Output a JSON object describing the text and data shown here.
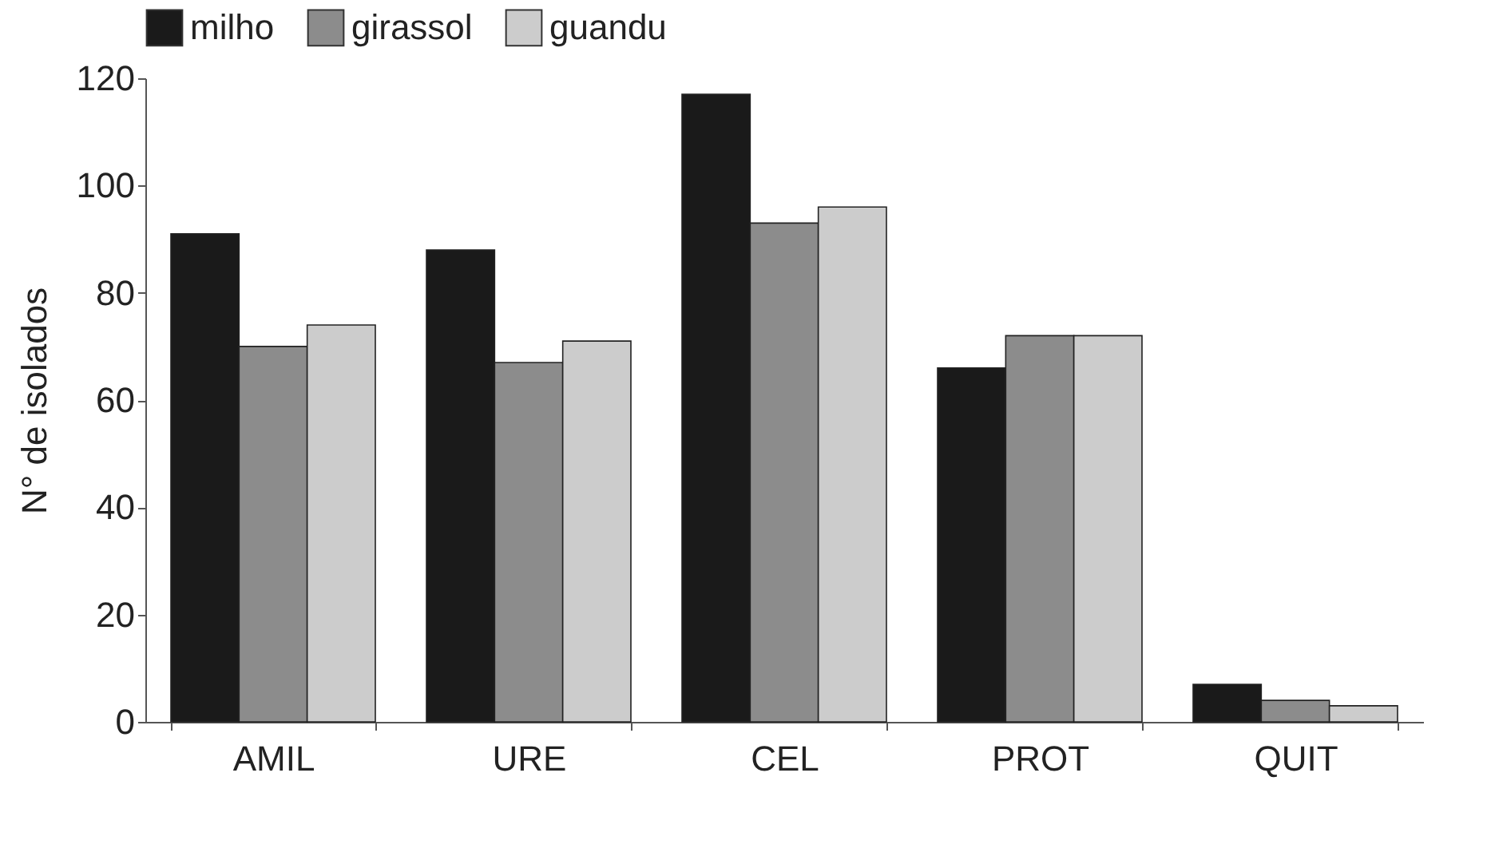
{
  "chart_data": {
    "type": "bar",
    "ylabel": "N° de isolados",
    "categories": [
      "AMIL",
      "URE",
      "CEL",
      "PROT",
      "QUIT"
    ],
    "series": [
      {
        "name": "milho",
        "color": "#1a1a1a",
        "values": [
          91,
          88,
          117,
          66,
          7
        ]
      },
      {
        "name": "girassol",
        "color": "#8c8c8c",
        "values": [
          70,
          67,
          93,
          72,
          4
        ]
      },
      {
        "name": "guandu",
        "color": "#cccccc",
        "values": [
          74,
          71,
          96,
          72,
          3
        ]
      }
    ],
    "ylim": [
      0,
      120
    ],
    "yticks": [
      0,
      20,
      40,
      60,
      80,
      100,
      120
    ],
    "grid": false,
    "legend": "top"
  }
}
